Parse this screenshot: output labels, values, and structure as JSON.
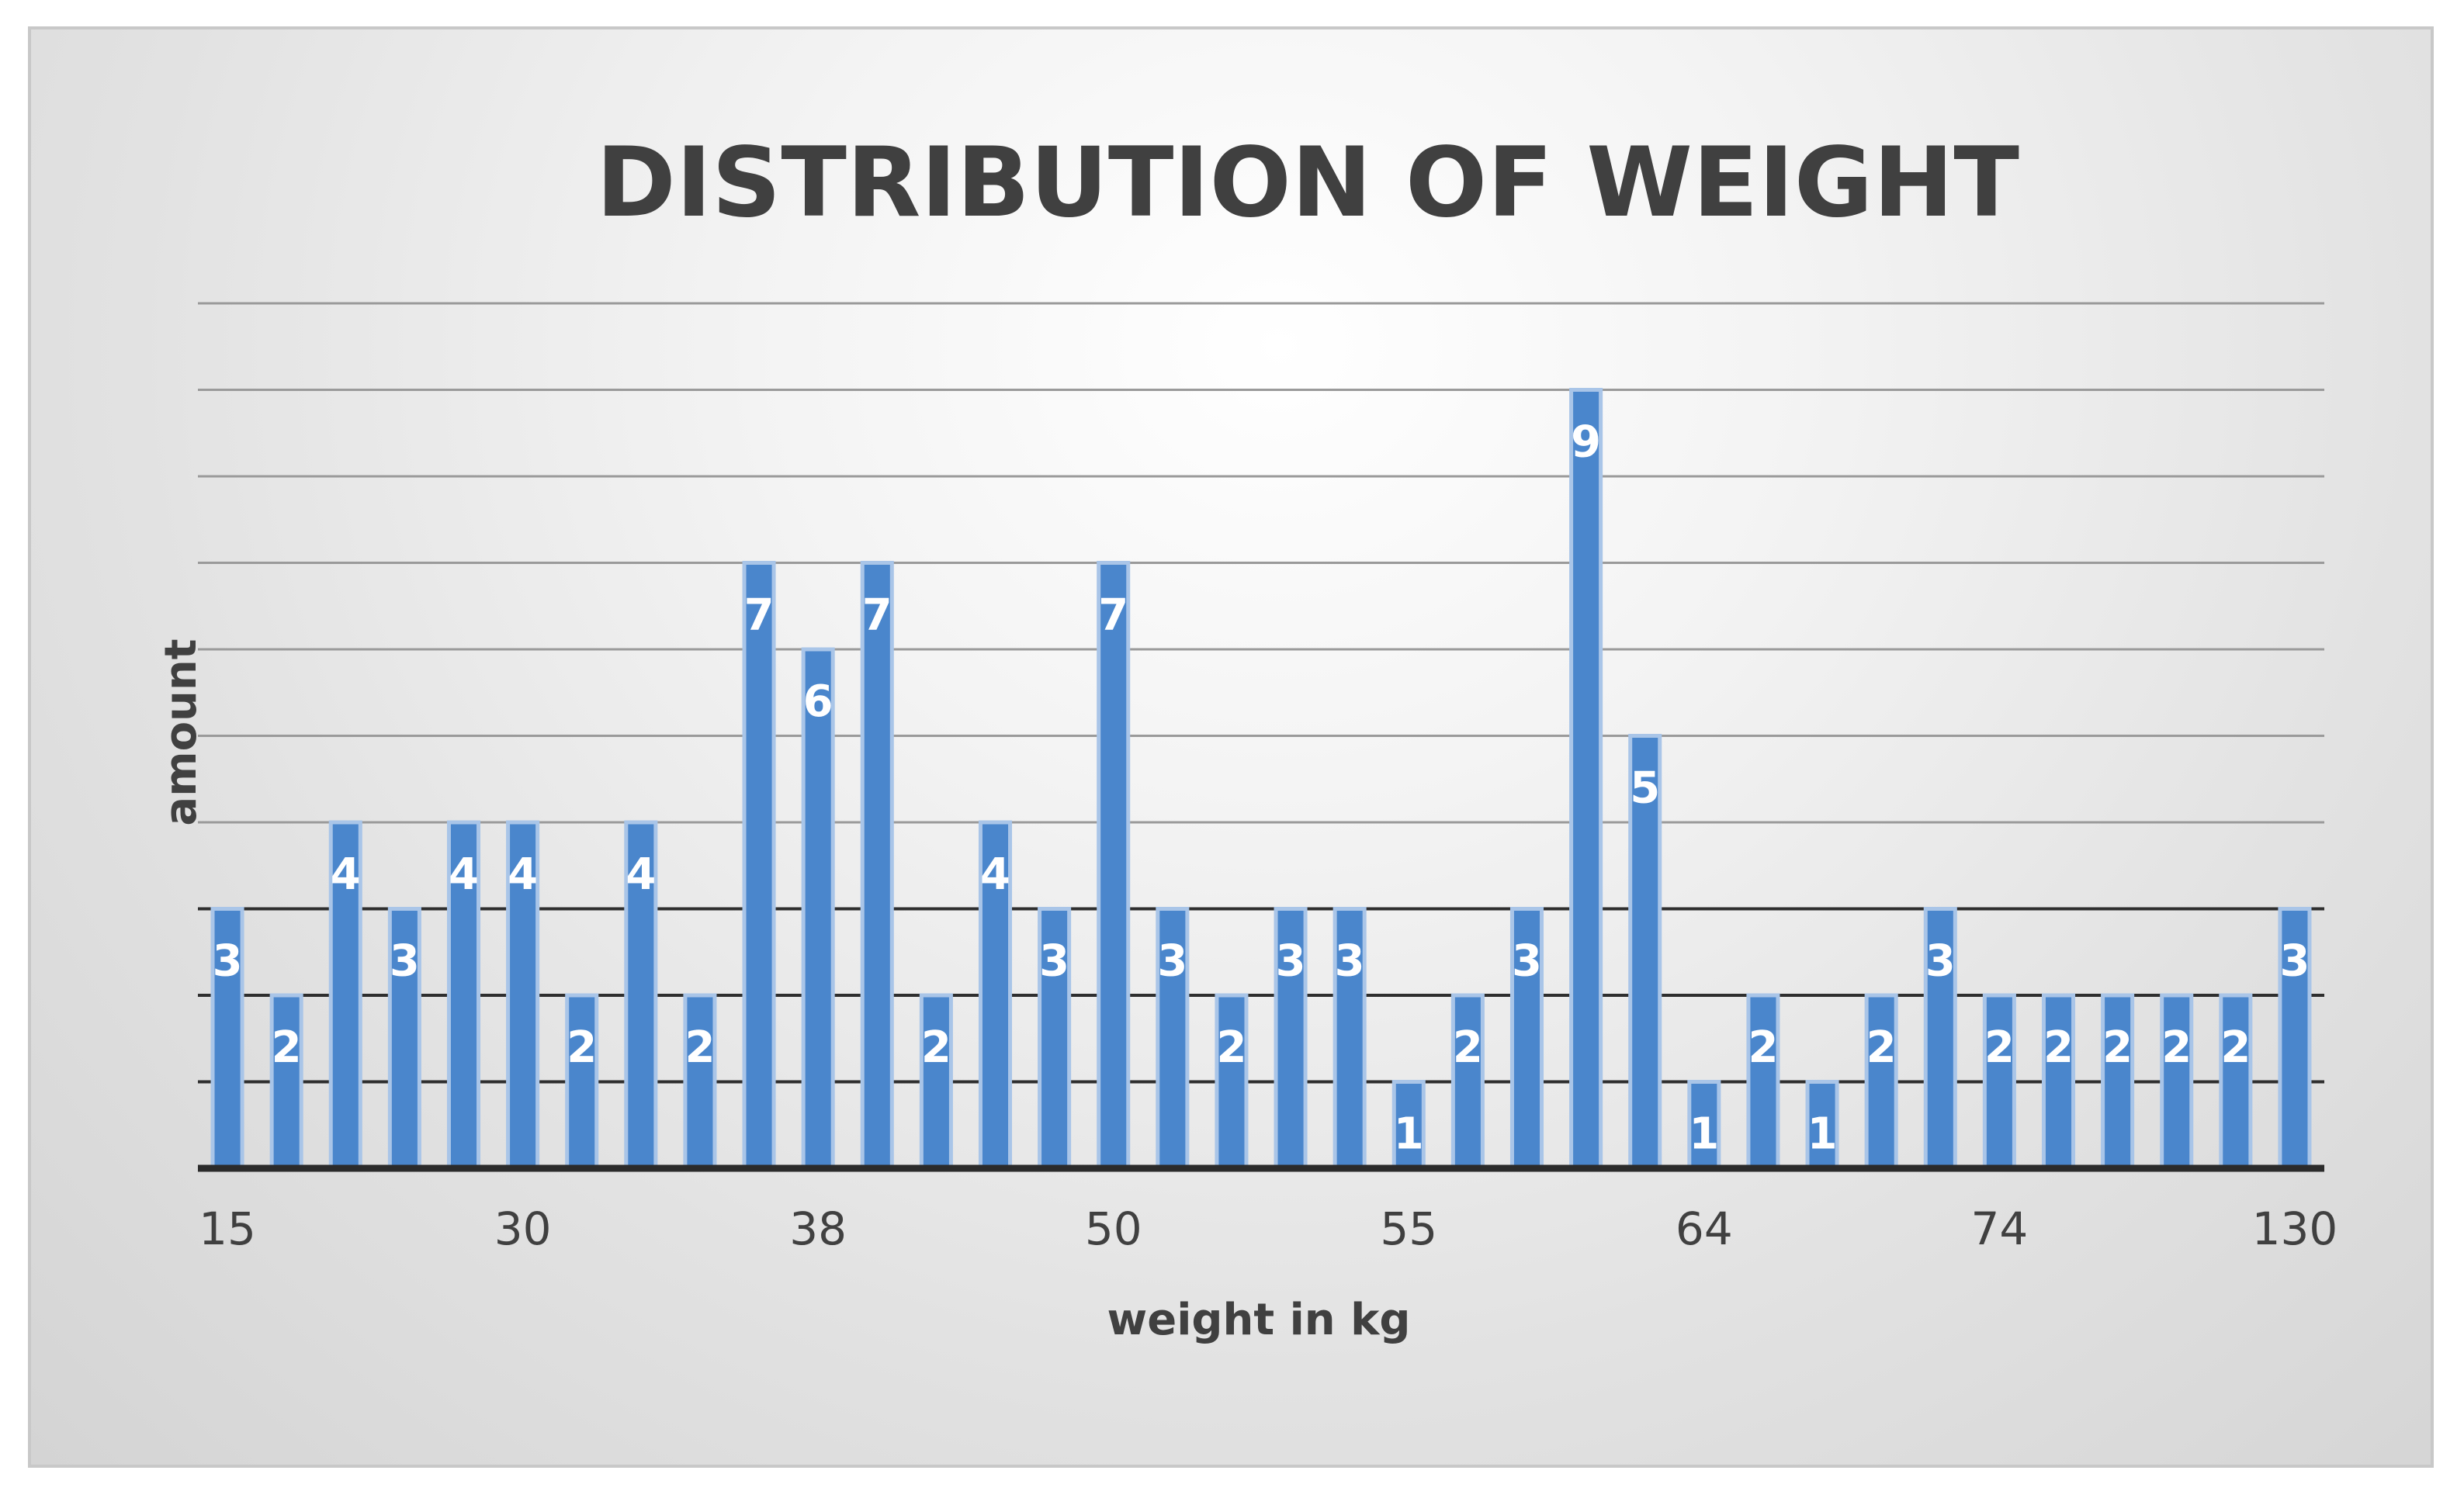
{
  "chart_data": {
    "type": "bar",
    "title": "DISTRIBUTION OF WEIGHT",
    "xlabel": "weight in kg",
    "ylabel": "amount",
    "x_tick_labels": [
      "15",
      "30",
      "38",
      "50",
      "55",
      "64",
      "74",
      "130"
    ],
    "values": [
      3,
      2,
      4,
      3,
      4,
      4,
      2,
      4,
      2,
      7,
      6,
      7,
      2,
      4,
      3,
      7,
      3,
      2,
      3,
      3,
      1,
      2,
      3,
      9,
      5,
      1,
      2,
      1,
      2,
      3,
      2,
      2,
      2,
      2,
      2,
      3
    ],
    "ylim": [
      0,
      10
    ],
    "grid": true,
    "legend": false,
    "bar_color": "#4a86cc",
    "bar_edge_color": "#a9c5e8"
  }
}
